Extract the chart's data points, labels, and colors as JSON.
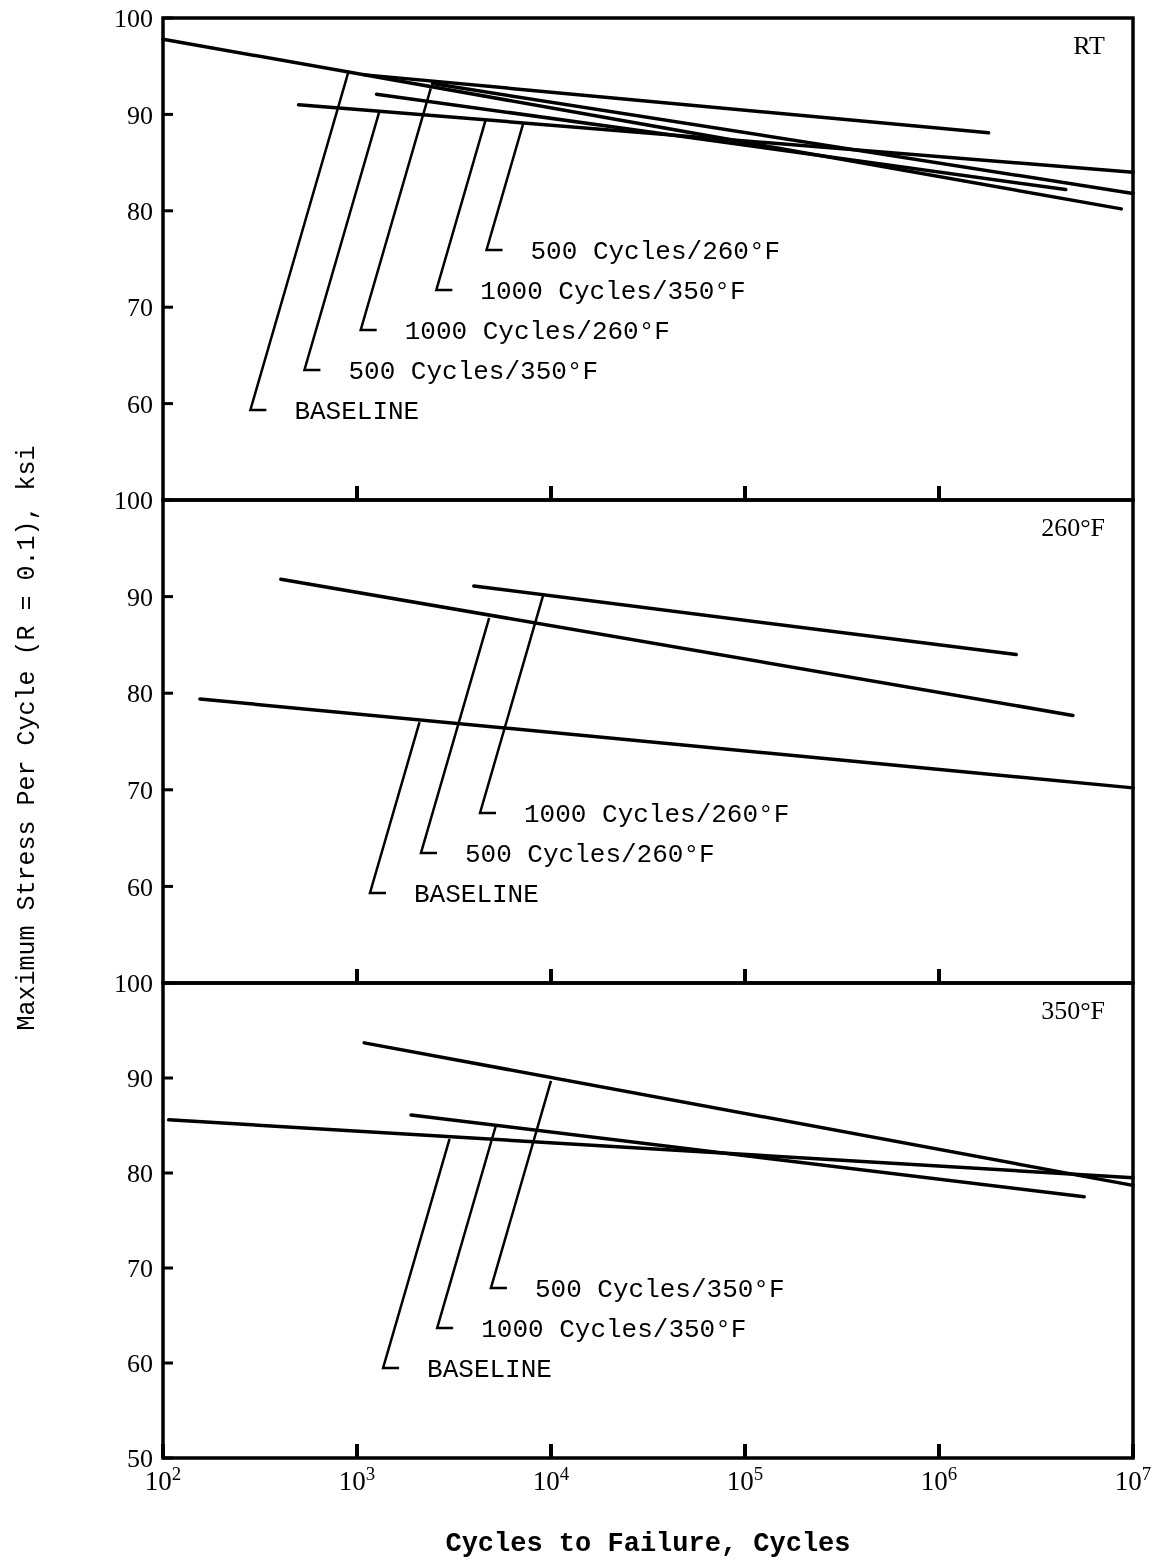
{
  "chart_data": [
    {
      "type": "line",
      "title": "RT",
      "log": "x",
      "xlim": [
        100,
        10000000
      ],
      "ylim": [
        50,
        100
      ],
      "xticks": [
        1000,
        10000,
        100000,
        1000000
      ],
      "yticks": [
        60,
        70,
        80,
        90,
        100
      ],
      "tick_labels": "y",
      "series": [
        {
          "color": "#000000",
          "x": [
            100,
            8700000
          ],
          "values": [
            97.8,
            80.2
          ]
        },
        {
          "color": "#000000",
          "x": [
            500,
            10000000
          ],
          "values": [
            91.0,
            84.0
          ]
        },
        {
          "color": "#000000",
          "x": [
            2450,
            10000000
          ],
          "values": [
            93.2,
            81.8
          ]
        },
        {
          "color": "#000000",
          "x": [
            1260,
            4500000
          ],
          "values": [
            92.1,
            82.2
          ]
        },
        {
          "color": "#000000",
          "x": [
            1100,
            1800000
          ],
          "values": [
            94.1,
            88.1
          ]
        }
      ],
      "annotations": [
        {
          "text": "BASELINE",
          "x": 900,
          "y": 94.3
        },
        {
          "text": "500 Cycles/350°F",
          "x": 1300,
          "y": 90.2
        },
        {
          "text": "1000 Cycles/260°F",
          "x": 2400,
          "y": 92.7
        },
        {
          "text": "1000 Cycles/350°F",
          "x": 4600,
          "y": 89.4
        },
        {
          "text": "500 Cycles/260°F",
          "x": 7200,
          "y": 89.1
        }
      ]
    },
    {
      "type": "line",
      "title": "260°F",
      "ylabel": "Maximum Stress Per Cycle (R = 0.1), ksi",
      "log": "x",
      "xlim": [
        100,
        10000000
      ],
      "ylim": [
        50,
        100
      ],
      "xticks": [
        1000,
        10000,
        100000,
        1000000
      ],
      "yticks": [
        60,
        70,
        80,
        90,
        100
      ],
      "tick_labels": "y",
      "series": [
        {
          "color": "#000000",
          "x": [
            155,
            10000000
          ],
          "values": [
            79.4,
            70.2
          ]
        },
        {
          "color": "#000000",
          "x": [
            405,
            4900000
          ],
          "values": [
            91.8,
            77.7
          ]
        },
        {
          "color": "#000000",
          "x": [
            4000,
            2500000
          ],
          "values": [
            91.1,
            84.0
          ]
        }
      ],
      "annotations": [
        {
          "text": "BASELINE",
          "x": 2100,
          "y": 77.0
        },
        {
          "text": "500 Cycles/260°F",
          "x": 4800,
          "y": 87.8
        },
        {
          "text": "1000 Cycles/260°F",
          "x": 9100,
          "y": 90.1
        }
      ]
    },
    {
      "type": "line",
      "title": "350°F",
      "xlabel": "Cycles to Failure, Cycles",
      "log": "x",
      "xlim": [
        100,
        10000000
      ],
      "ylim": [
        50,
        100
      ],
      "xticks": [
        {
          "value": 100,
          "label": "10$^{2}$"
        },
        {
          "value": 1000,
          "label": "10$^{3}$"
        },
        {
          "value": 10000,
          "label": "10$^{4}$"
        },
        {
          "value": 100000,
          "label": "10$^{5}$"
        },
        {
          "value": 1000000,
          "label": "10$^{6}$"
        },
        {
          "value": 10000000,
          "label": "10$^{7}$"
        }
      ],
      "yticks": [
        50,
        60,
        70,
        80,
        90,
        100
      ],
      "series": [
        {
          "color": "#000000",
          "x": [
            107,
            10000000
          ],
          "values": [
            85.6,
            79.5
          ]
        },
        {
          "color": "#000000",
          "x": [
            1900,
            5600000
          ],
          "values": [
            86.1,
            77.5
          ]
        },
        {
          "color": "#000000",
          "x": [
            1090,
            10000000
          ],
          "values": [
            93.7,
            78.7
          ]
        }
      ],
      "annotations": [
        {
          "text": "BASELINE",
          "x": 3000,
          "y": 83.6
        },
        {
          "text": "1000 Cycles/350°F",
          "x": 5200,
          "y": 85.0
        },
        {
          "text": "500 Cycles/350°F",
          "x": 10000,
          "y": 89.7
        }
      ]
    }
  ]
}
